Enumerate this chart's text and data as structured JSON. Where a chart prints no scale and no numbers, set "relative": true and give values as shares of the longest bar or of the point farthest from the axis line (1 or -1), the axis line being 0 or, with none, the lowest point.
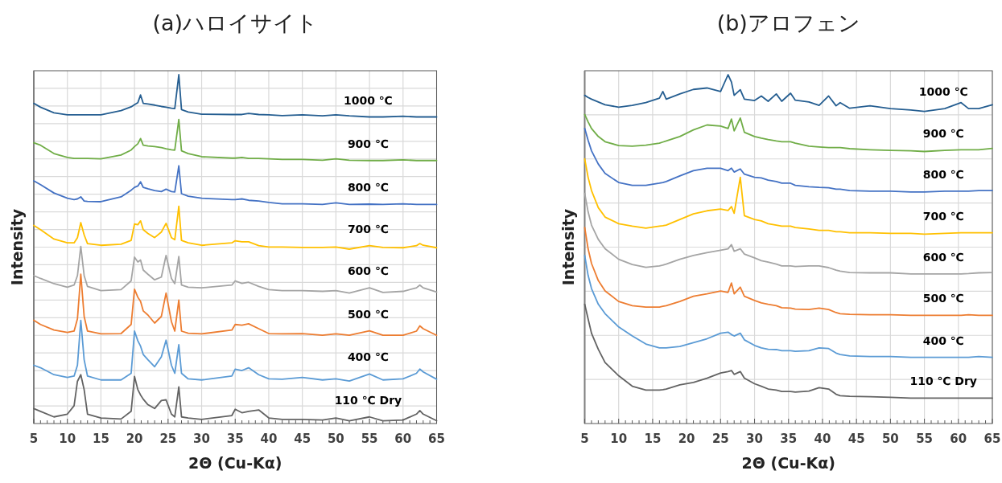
{
  "chart_data": [
    {
      "type": "line",
      "title": "(a)ハロイサイト",
      "xlabel": "2Θ (Cu-Kα)",
      "ylabel": "Intensity",
      "relative": true,
      "grid": true,
      "xlim": [
        5,
        65
      ],
      "xticks": [
        5,
        10,
        15,
        20,
        25,
        30,
        35,
        40,
        45,
        50,
        55,
        60,
        65
      ],
      "x": [
        5,
        6,
        8,
        10,
        11,
        11.5,
        12,
        12.5,
        13,
        15,
        18,
        19.5,
        20,
        20.5,
        20.9,
        21.3,
        22,
        23,
        24,
        24.7,
        25.5,
        26,
        26.6,
        27,
        28,
        30,
        34.5,
        35,
        36,
        37,
        38.5,
        40,
        42,
        45,
        48,
        50,
        52,
        55,
        57,
        60,
        62,
        62.5,
        63,
        65
      ],
      "series": [
        {
          "name": "1000 ℃",
          "color": "#255e91",
          "values": [
            0.918,
            0.907,
            0.891,
            0.885,
            0.885,
            0.885,
            0.885,
            0.885,
            0.885,
            0.885,
            0.897,
            0.908,
            0.914,
            0.92,
            0.942,
            0.918,
            0.916,
            0.913,
            0.909,
            0.907,
            0.904,
            0.903,
            1.0,
            0.9,
            0.893,
            0.887,
            0.886,
            0.886,
            0.886,
            0.889,
            0.886,
            0.885,
            0.883,
            0.885,
            0.882,
            0.885,
            0.882,
            0.879,
            0.879,
            0.881,
            0.879,
            0.879,
            0.879,
            0.879
          ]
        },
        {
          "name": "900 ℃",
          "color": "#70ad47",
          "values": [
            0.805,
            0.798,
            0.774,
            0.763,
            0.76,
            0.76,
            0.76,
            0.76,
            0.76,
            0.759,
            0.77,
            0.784,
            0.794,
            0.802,
            0.817,
            0.798,
            0.796,
            0.794,
            0.791,
            0.788,
            0.785,
            0.784,
            0.872,
            0.782,
            0.774,
            0.765,
            0.761,
            0.761,
            0.763,
            0.76,
            0.76,
            0.759,
            0.757,
            0.757,
            0.755,
            0.759,
            0.755,
            0.754,
            0.754,
            0.756,
            0.754,
            0.754,
            0.754,
            0.754
          ]
        },
        {
          "name": "800 ℃",
          "color": "#4472c4",
          "values": [
            0.696,
            0.685,
            0.661,
            0.646,
            0.642,
            0.644,
            0.65,
            0.638,
            0.637,
            0.636,
            0.65,
            0.669,
            0.677,
            0.681,
            0.693,
            0.677,
            0.673,
            0.668,
            0.665,
            0.672,
            0.665,
            0.664,
            0.739,
            0.659,
            0.652,
            0.646,
            0.642,
            0.642,
            0.644,
            0.64,
            0.638,
            0.634,
            0.63,
            0.63,
            0.628,
            0.633,
            0.628,
            0.629,
            0.628,
            0.63,
            0.628,
            0.628,
            0.628,
            0.628
          ]
        },
        {
          "name": "700 ℃",
          "color": "#ffc000",
          "values": [
            0.568,
            0.556,
            0.529,
            0.518,
            0.518,
            0.533,
            0.576,
            0.541,
            0.516,
            0.511,
            0.514,
            0.525,
            0.572,
            0.57,
            0.581,
            0.556,
            0.545,
            0.533,
            0.549,
            0.574,
            0.533,
            0.527,
            0.623,
            0.525,
            0.518,
            0.511,
            0.518,
            0.524,
            0.521,
            0.521,
            0.51,
            0.506,
            0.506,
            0.505,
            0.505,
            0.506,
            0.5,
            0.51,
            0.505,
            0.504,
            0.51,
            0.516,
            0.511,
            0.504
          ]
        },
        {
          "name": "600 ℃",
          "color": "#a5a5a5",
          "values": [
            0.424,
            0.416,
            0.401,
            0.391,
            0.397,
            0.424,
            0.508,
            0.424,
            0.393,
            0.381,
            0.384,
            0.409,
            0.477,
            0.463,
            0.469,
            0.44,
            0.428,
            0.412,
            0.42,
            0.482,
            0.416,
            0.401,
            0.479,
            0.397,
            0.391,
            0.389,
            0.397,
            0.409,
            0.402,
            0.405,
            0.393,
            0.384,
            0.381,
            0.381,
            0.379,
            0.381,
            0.374,
            0.389,
            0.376,
            0.379,
            0.389,
            0.397,
            0.389,
            0.377
          ]
        },
        {
          "name": "500 ℃",
          "color": "#ed7d31",
          "values": [
            0.296,
            0.284,
            0.268,
            0.261,
            0.265,
            0.3,
            0.428,
            0.307,
            0.265,
            0.257,
            0.258,
            0.284,
            0.385,
            0.362,
            0.35,
            0.323,
            0.311,
            0.288,
            0.307,
            0.374,
            0.292,
            0.265,
            0.354,
            0.265,
            0.259,
            0.257,
            0.268,
            0.284,
            0.282,
            0.286,
            0.272,
            0.258,
            0.257,
            0.258,
            0.253,
            0.257,
            0.253,
            0.266,
            0.253,
            0.253,
            0.265,
            0.28,
            0.272,
            0.253
          ]
        },
        {
          "name": "400 ℃",
          "color": "#5b9bd5",
          "values": [
            0.167,
            0.16,
            0.14,
            0.132,
            0.136,
            0.167,
            0.296,
            0.183,
            0.136,
            0.125,
            0.125,
            0.144,
            0.265,
            0.237,
            0.222,
            0.198,
            0.183,
            0.163,
            0.191,
            0.239,
            0.167,
            0.144,
            0.226,
            0.144,
            0.128,
            0.125,
            0.136,
            0.156,
            0.152,
            0.16,
            0.14,
            0.128,
            0.127,
            0.132,
            0.125,
            0.128,
            0.122,
            0.142,
            0.125,
            0.128,
            0.144,
            0.156,
            0.148,
            0.127
          ]
        },
        {
          "name": "110 ℃ Dry",
          "color": "#636363",
          "values": [
            0.043,
            0.035,
            0.019,
            0.027,
            0.051,
            0.121,
            0.14,
            0.097,
            0.027,
            0.016,
            0.013,
            0.035,
            0.135,
            0.097,
            0.082,
            0.07,
            0.054,
            0.043,
            0.066,
            0.068,
            0.027,
            0.019,
            0.105,
            0.019,
            0.016,
            0.012,
            0.023,
            0.041,
            0.031,
            0.035,
            0.039,
            0.016,
            0.012,
            0.012,
            0.01,
            0.016,
            0.008,
            0.019,
            0.008,
            0.01,
            0.027,
            0.037,
            0.027,
            0.008
          ]
        }
      ]
    },
    {
      "type": "line",
      "title": "(b)アロフェン",
      "xlabel": "2Θ (Cu-Kα)",
      "ylabel": "Intensity",
      "relative": true,
      "grid": true,
      "xlim": [
        5,
        65
      ],
      "xticks": [
        5,
        10,
        15,
        20,
        25,
        30,
        35,
        40,
        45,
        50,
        55,
        60,
        65
      ],
      "x": [
        5,
        5.5,
        6,
        7,
        8,
        10,
        12,
        14,
        16,
        16.5,
        17,
        19,
        21,
        23,
        25,
        26.1,
        26.6,
        27,
        27.9,
        28.5,
        30,
        31,
        32,
        33.2,
        34,
        35.3,
        36,
        38,
        39.5,
        40.9,
        42,
        42.6,
        44,
        47,
        50,
        53,
        55,
        58,
        60.4,
        61.5,
        63,
        65
      ],
      "series": [
        {
          "name": "1000 ℃",
          "color": "#255e91",
          "values": [
            0.941,
            0.935,
            0.93,
            0.922,
            0.914,
            0.907,
            0.912,
            0.92,
            0.933,
            0.952,
            0.93,
            0.945,
            0.958,
            0.962,
            0.952,
            1.0,
            0.979,
            0.941,
            0.957,
            0.93,
            0.926,
            0.939,
            0.924,
            0.945,
            0.924,
            0.947,
            0.927,
            0.922,
            0.912,
            0.939,
            0.911,
            0.92,
            0.904,
            0.911,
            0.903,
            0.899,
            0.895,
            0.903,
            0.92,
            0.903,
            0.903,
            0.914
          ]
        },
        {
          "name": "900 ℃",
          "color": "#70ad47",
          "values": [
            0.886,
            0.865,
            0.846,
            0.823,
            0.808,
            0.797,
            0.795,
            0.798,
            0.804,
            0.807,
            0.81,
            0.823,
            0.842,
            0.856,
            0.853,
            0.846,
            0.873,
            0.839,
            0.876,
            0.835,
            0.823,
            0.818,
            0.814,
            0.81,
            0.808,
            0.808,
            0.804,
            0.795,
            0.793,
            0.791,
            0.791,
            0.791,
            0.788,
            0.785,
            0.783,
            0.782,
            0.78,
            0.783,
            0.785,
            0.785,
            0.785,
            0.789
          ]
        },
        {
          "name": "800 ℃",
          "color": "#4472c4",
          "values": [
            0.846,
            0.812,
            0.782,
            0.744,
            0.717,
            0.691,
            0.683,
            0.683,
            0.689,
            0.691,
            0.694,
            0.71,
            0.725,
            0.732,
            0.732,
            0.725,
            0.732,
            0.721,
            0.73,
            0.715,
            0.706,
            0.704,
            0.698,
            0.694,
            0.689,
            0.689,
            0.683,
            0.679,
            0.677,
            0.676,
            0.672,
            0.672,
            0.668,
            0.666,
            0.666,
            0.664,
            0.664,
            0.666,
            0.666,
            0.666,
            0.668,
            0.668
          ]
        },
        {
          "name": "700 ℃",
          "color": "#ffc000",
          "values": [
            0.759,
            0.706,
            0.668,
            0.619,
            0.592,
            0.573,
            0.566,
            0.56,
            0.566,
            0.567,
            0.569,
            0.585,
            0.601,
            0.61,
            0.615,
            0.611,
            0.622,
            0.603,
            0.706,
            0.596,
            0.585,
            0.581,
            0.573,
            0.569,
            0.566,
            0.566,
            0.562,
            0.558,
            0.554,
            0.554,
            0.55,
            0.55,
            0.547,
            0.547,
            0.545,
            0.545,
            0.543,
            0.545,
            0.547,
            0.547,
            0.547,
            0.547
          ]
        },
        {
          "name": "600 ℃",
          "color": "#a5a5a5",
          "values": [
            0.66,
            0.607,
            0.569,
            0.528,
            0.501,
            0.471,
            0.456,
            0.448,
            0.452,
            0.454,
            0.457,
            0.471,
            0.482,
            0.49,
            0.497,
            0.501,
            0.513,
            0.494,
            0.501,
            0.486,
            0.475,
            0.467,
            0.463,
            0.457,
            0.452,
            0.452,
            0.45,
            0.452,
            0.452,
            0.447,
            0.44,
            0.437,
            0.433,
            0.432,
            0.432,
            0.429,
            0.429,
            0.429,
            0.429,
            0.43,
            0.432,
            0.433
          ]
        },
        {
          "name": "500 ℃",
          "color": "#ed7d31",
          "values": [
            0.562,
            0.501,
            0.459,
            0.41,
            0.38,
            0.35,
            0.338,
            0.334,
            0.334,
            0.336,
            0.338,
            0.35,
            0.365,
            0.372,
            0.38,
            0.376,
            0.403,
            0.372,
            0.391,
            0.365,
            0.353,
            0.346,
            0.342,
            0.338,
            0.332,
            0.331,
            0.328,
            0.327,
            0.331,
            0.327,
            0.318,
            0.315,
            0.313,
            0.312,
            0.312,
            0.31,
            0.31,
            0.31,
            0.31,
            0.312,
            0.31,
            0.31
          ]
        },
        {
          "name": "400 ℃",
          "color": "#5b9bd5",
          "values": [
            0.482,
            0.425,
            0.387,
            0.342,
            0.315,
            0.277,
            0.251,
            0.228,
            0.217,
            0.217,
            0.217,
            0.221,
            0.232,
            0.243,
            0.259,
            0.262,
            0.255,
            0.251,
            0.259,
            0.24,
            0.224,
            0.217,
            0.213,
            0.212,
            0.209,
            0.209,
            0.207,
            0.209,
            0.217,
            0.215,
            0.202,
            0.198,
            0.194,
            0.192,
            0.192,
            0.19,
            0.19,
            0.19,
            0.19,
            0.19,
            0.192,
            0.19
          ]
        },
        {
          "name": "110 ℃ Dry",
          "color": "#636363",
          "values": [
            0.342,
            0.3,
            0.259,
            0.213,
            0.175,
            0.137,
            0.107,
            0.096,
            0.096,
            0.097,
            0.099,
            0.111,
            0.118,
            0.13,
            0.145,
            0.149,
            0.152,
            0.141,
            0.149,
            0.13,
            0.114,
            0.107,
            0.099,
            0.096,
            0.092,
            0.092,
            0.09,
            0.093,
            0.103,
            0.099,
            0.084,
            0.08,
            0.078,
            0.077,
            0.075,
            0.073,
            0.073,
            0.073,
            0.073,
            0.073,
            0.073,
            0.073
          ]
        }
      ]
    }
  ]
}
